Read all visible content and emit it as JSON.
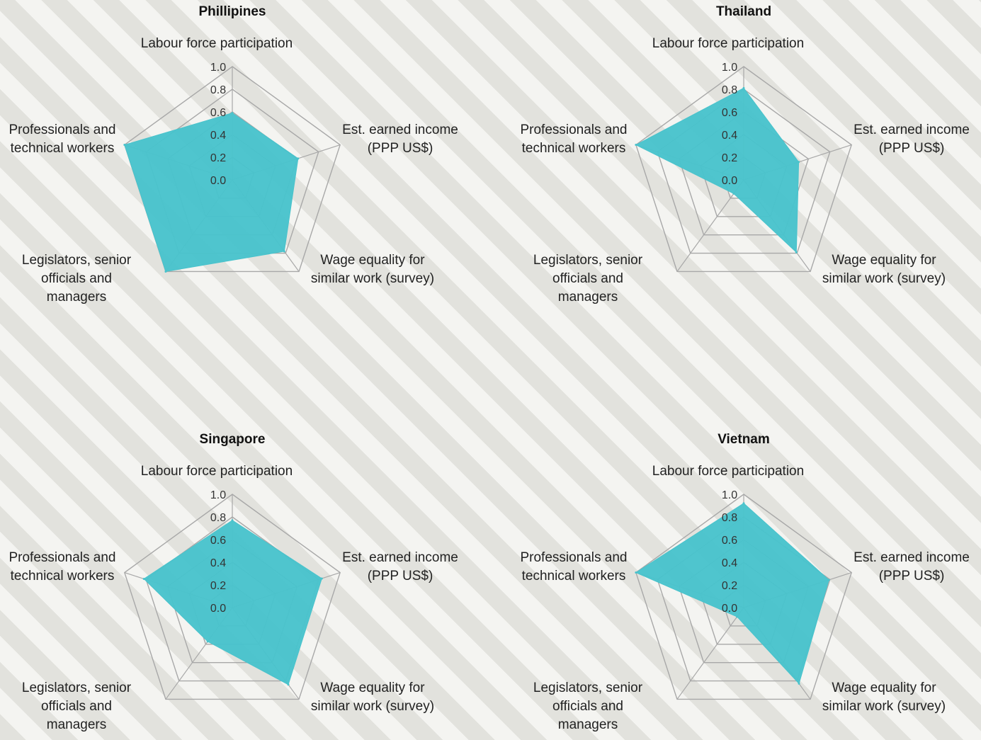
{
  "chart_data": [
    {
      "type": "radar",
      "title": "Phillipines",
      "axes": [
        "Labour force participation",
        "Est. earned income (PPP US$)",
        "Wage equality for similar work (survey)",
        "Legislators, senior officials and managers",
        "Professionals and technical workers"
      ],
      "axis_labels": [
        [
          "Labour force participation"
        ],
        [
          "Est. earned income",
          "(PPP US$)"
        ],
        [
          "Wage equality for",
          "similar work (survey)"
        ],
        [
          "Legislators, senior",
          "officials and",
          "managers"
        ],
        [
          "Professionals and",
          "technical workers"
        ]
      ],
      "ticks": [
        "0.0",
        "0.2",
        "0.4",
        "0.6",
        "0.8",
        "1.0"
      ],
      "range": [
        0,
        1
      ],
      "values": [
        0.59,
        0.61,
        0.78,
        1.0,
        1.0
      ]
    },
    {
      "type": "radar",
      "title": "Thailand",
      "axes": [
        "Labour force participation",
        "Est. earned income (PPP US$)",
        "Wage equality for similar work (survey)",
        "Legislators, senior officials and managers",
        "Professionals and technical workers"
      ],
      "axis_labels": [
        [
          "Labour force participation"
        ],
        [
          "Est. earned income",
          "(PPP US$)"
        ],
        [
          "Wage equality for",
          "similar work (survey)"
        ],
        [
          "Legislators, senior",
          "officials and",
          "managers"
        ],
        [
          "Professionals and",
          "technical workers"
        ]
      ],
      "ticks": [
        "0.0",
        "0.2",
        "0.4",
        "0.6",
        "0.8",
        "1.0"
      ],
      "range": [
        0,
        1
      ],
      "values": [
        0.81,
        0.51,
        0.79,
        0.15,
        1.0
      ]
    },
    {
      "type": "radar",
      "title": "Singapore",
      "axes": [
        "Labour force participation",
        "Est. earned income (PPP US$)",
        "Wage equality for similar work (survey)",
        "Legislators, senior officials and managers",
        "Professionals and technical workers"
      ],
      "axis_labels": [
        [
          "Labour force participation"
        ],
        [
          "Est. earned income",
          "(PPP US$)"
        ],
        [
          "Wage equality for",
          "similar work (survey)"
        ],
        [
          "Legislators, senior",
          "officials and",
          "managers"
        ],
        [
          "Professionals and",
          "technical workers"
        ]
      ],
      "ticks": [
        "0.0",
        "0.2",
        "0.4",
        "0.6",
        "0.8",
        "1.0"
      ],
      "range": [
        0,
        1
      ],
      "values": [
        0.77,
        0.83,
        0.84,
        0.37,
        0.82
      ]
    },
    {
      "type": "radar",
      "title": "Vietnam",
      "axes": [
        "Labour force participation",
        "Est. earned income (PPP US$)",
        "Wage equality for similar work (survey)",
        "Legislators, senior officials and managers",
        "Professionals and technical workers"
      ],
      "axis_labels": [
        [
          "Labour force participation"
        ],
        [
          "Est. earned income",
          "(PPP US$)"
        ],
        [
          "Wage equality for",
          "similar work (survey)"
        ],
        [
          "Legislators, senior",
          "officials and",
          "managers"
        ],
        [
          "Professionals and",
          "technical workers"
        ]
      ],
      "ticks": [
        "0.0",
        "0.2",
        "0.4",
        "0.6",
        "0.8",
        "1.0"
      ],
      "range": [
        0,
        1
      ],
      "values": [
        0.92,
        0.79,
        0.83,
        0.1,
        1.0
      ]
    }
  ],
  "colors": {
    "fill": "#49c3cc",
    "grid": "#a8a8a8"
  }
}
